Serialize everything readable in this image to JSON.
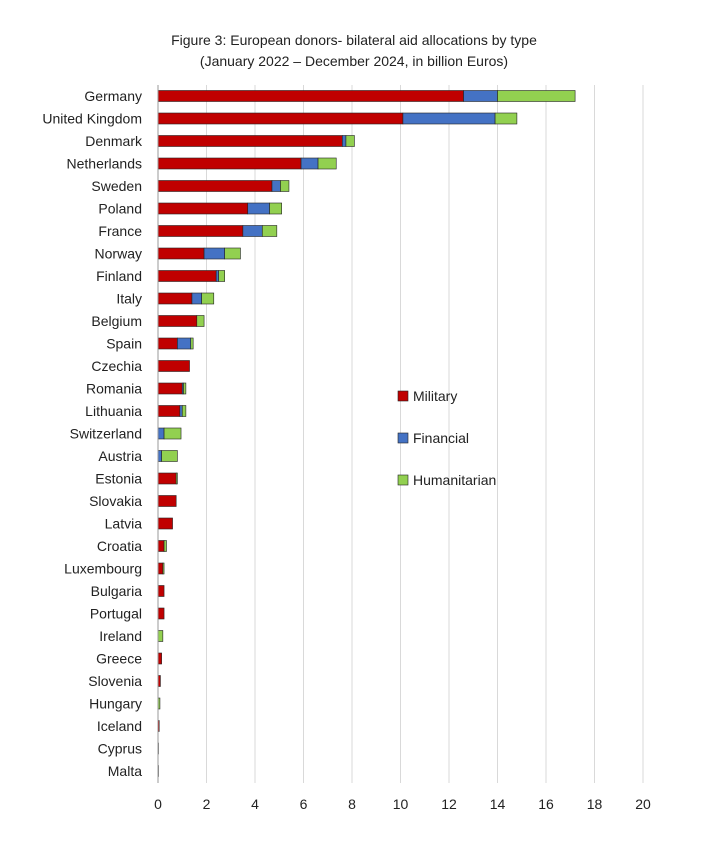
{
  "chart_data": {
    "type": "bar",
    "orientation": "horizontal",
    "stacked": true,
    "title": "Figure 3: European donors- bilateral aid allocations by type",
    "subtitle": "(January 2022 – December 2024, in billion Euros)",
    "xlim": [
      0,
      20
    ],
    "xticks": [
      0,
      2,
      4,
      6,
      8,
      10,
      12,
      14,
      16,
      18,
      20
    ],
    "grid": true,
    "legend_position": "right-middle",
    "categories": [
      "Germany",
      "United Kingdom",
      "Denmark",
      "Netherlands",
      "Sweden",
      "Poland",
      "France",
      "Norway",
      "Finland",
      "Italy",
      "Belgium",
      "Spain",
      "Czechia",
      "Romania",
      "Lithuania",
      "Switzerland",
      "Austria",
      "Estonia",
      "Slovakia",
      "Latvia",
      "Croatia",
      "Luxembourg",
      "Bulgaria",
      "Portugal",
      "Ireland",
      "Greece",
      "Slovenia",
      "Hungary",
      "Iceland",
      "Cyprus",
      "Malta"
    ],
    "series": [
      {
        "name": "Military",
        "color": "#c00000",
        "values": [
          12.6,
          10.1,
          7.6,
          5.9,
          4.7,
          3.7,
          3.5,
          1.9,
          2.4,
          1.4,
          1.6,
          0.8,
          1.3,
          1.0,
          0.9,
          0.0,
          0.0,
          0.75,
          0.75,
          0.6,
          0.25,
          0.2,
          0.25,
          0.25,
          0.0,
          0.15,
          0.1,
          0.0,
          0.05,
          0.02,
          0.01
        ]
      },
      {
        "name": "Financial",
        "color": "#4472c4",
        "values": [
          1.4,
          3.8,
          0.15,
          0.7,
          0.35,
          0.9,
          0.8,
          0.85,
          0.1,
          0.4,
          0.0,
          0.55,
          0.0,
          0.05,
          0.1,
          0.25,
          0.15,
          0.0,
          0.0,
          0.0,
          0.0,
          0.0,
          0.0,
          0.0,
          0.0,
          0.0,
          0.0,
          0.0,
          0.0,
          0.0,
          0.0
        ]
      },
      {
        "name": "Humanitarian",
        "color": "#92d050",
        "values": [
          3.2,
          0.9,
          0.35,
          0.75,
          0.35,
          0.5,
          0.6,
          0.65,
          0.25,
          0.5,
          0.3,
          0.1,
          0.0,
          0.1,
          0.15,
          0.7,
          0.65,
          0.05,
          0.0,
          0.0,
          0.1,
          0.05,
          0.0,
          0.0,
          0.2,
          0.0,
          0.0,
          0.08,
          0.0,
          0.0,
          0.0
        ]
      }
    ]
  }
}
